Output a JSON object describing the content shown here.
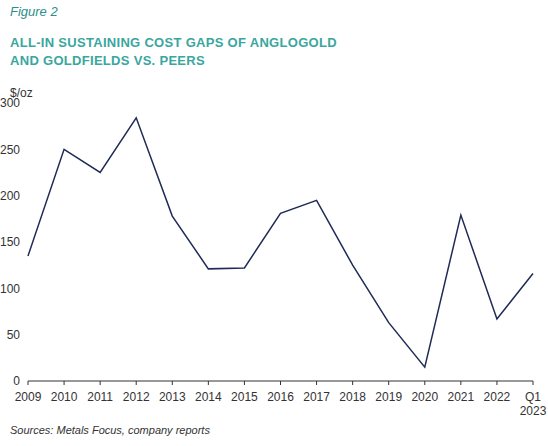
{
  "chart_data": {
    "type": "line",
    "title": "ALL-IN SUSTAINING COST GAPS OF ANGLOGOLD AND GOLDFIELDS VS. PEERS",
    "y_label": "$/oz",
    "annotations": [
      "Figure 2",
      "Sources: Metals Focus, company reports"
    ],
    "categories": [
      "2009",
      "2010",
      "2011",
      "2012",
      "2013",
      "2014",
      "2015",
      "2016",
      "2017",
      "2018",
      "2019",
      "2020",
      "2021",
      "2022",
      "Q1 2023"
    ],
    "values": [
      135,
      250,
      225,
      284,
      178,
      121,
      122,
      181,
      195,
      125,
      63,
      15,
      179,
      67,
      116
    ],
    "color": "#1f2a56",
    "ylim": [
      0,
      300
    ],
    "yticks": [
      0,
      50,
      100,
      150,
      200,
      250,
      300
    ],
    "grid": false
  }
}
